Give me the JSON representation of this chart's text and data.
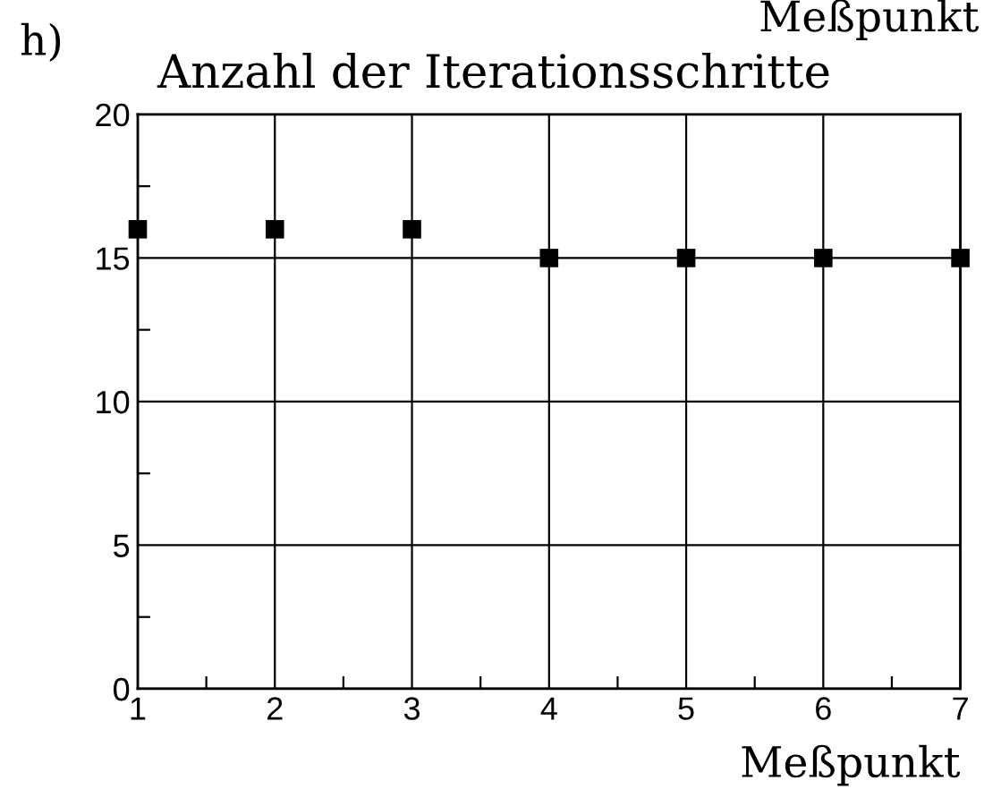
{
  "chart_data": {
    "type": "scatter",
    "title": "Anzahl der Iterationsschritte",
    "xlabel": "Meßpunkt",
    "annotations": [
      "h)",
      "Meßpunkt"
    ],
    "x": [
      1,
      2,
      3,
      4,
      5,
      6,
      7
    ],
    "series": [
      {
        "color": "#000000",
        "values": [
          16,
          16,
          16,
          15,
          15,
          15,
          15
        ]
      }
    ],
    "xlim": [
      1,
      7
    ],
    "xticks": [
      1,
      2,
      3,
      4,
      5,
      6,
      7
    ],
    "ylim": [
      0,
      20
    ],
    "yticks": [
      0,
      5,
      10,
      15,
      20
    ],
    "grid": true,
    "marker": "square"
  }
}
